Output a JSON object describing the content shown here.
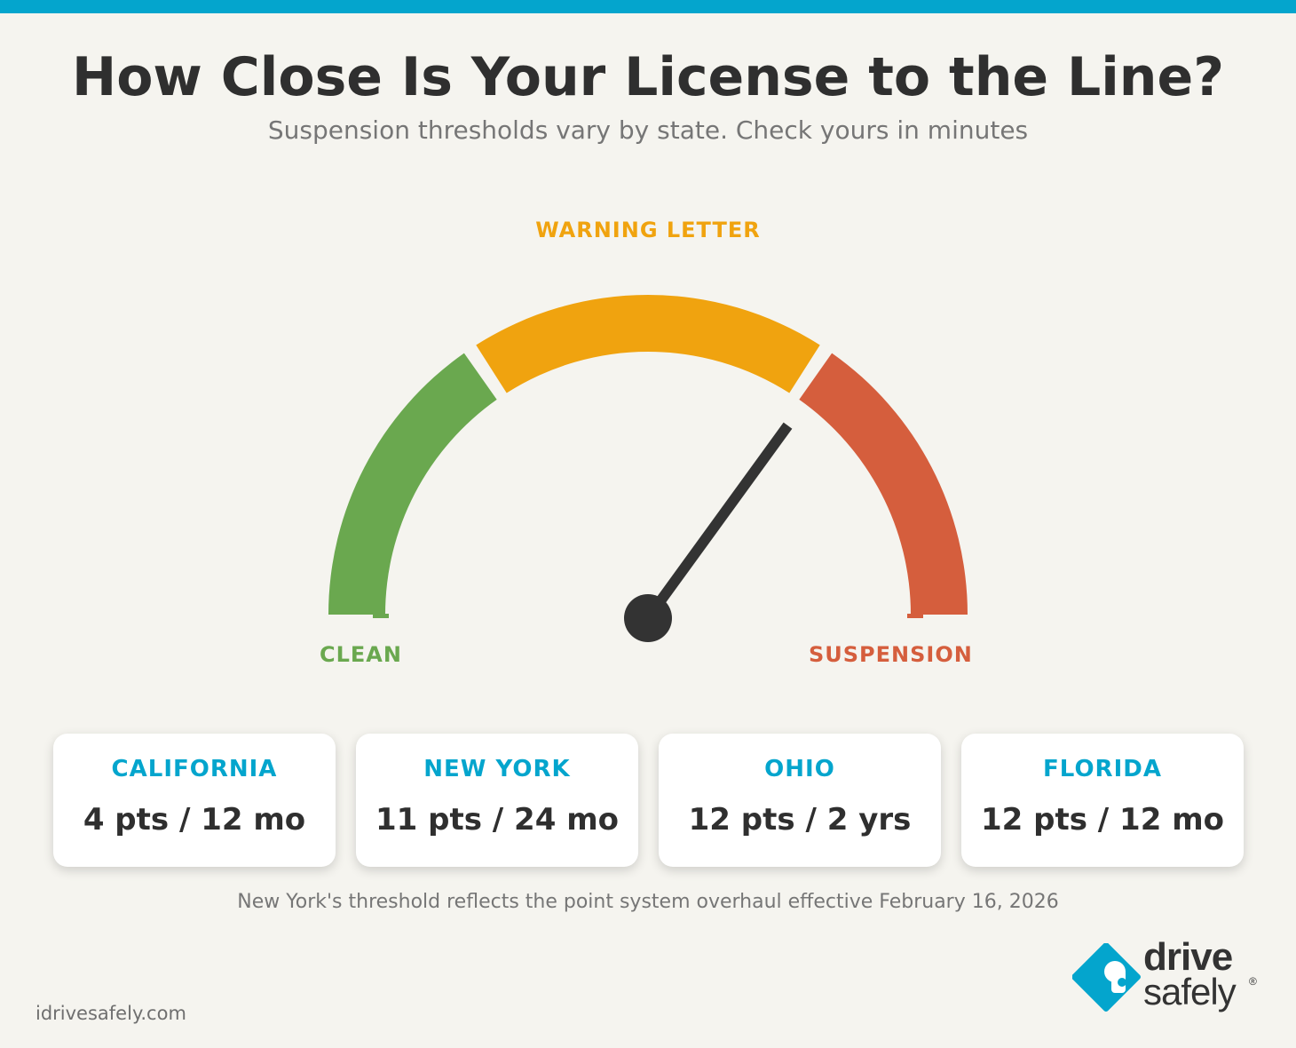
{
  "header": {
    "title": "How Close Is Your License to the Line?",
    "subtitle": "Suspension thresholds vary by state. Check yours in minutes"
  },
  "gauge": {
    "zones": [
      {
        "label": "CLEAN",
        "color": "#6aa84f"
      },
      {
        "label": "WARNING LETTER",
        "color": "#f0a30f"
      },
      {
        "label": "SUSPENSION",
        "color": "#d55e3d"
      }
    ],
    "needle_value": 0.7,
    "needle_color": "#333333"
  },
  "states": [
    {
      "name": "CALIFORNIA",
      "threshold": "4 pts / 12 mo"
    },
    {
      "name": "NEW YORK",
      "threshold": "11 pts / 24 mo"
    },
    {
      "name": "OHIO",
      "threshold": "12 pts / 2 yrs"
    },
    {
      "name": "FLORIDA",
      "threshold": "12 pts / 12 mo"
    }
  ],
  "footnote": "New York's threshold reflects the point system overhaul effective February 16, 2026",
  "footer": {
    "url": "idrivesafely.com",
    "logo_line1": "drive",
    "logo_line2": "safely",
    "logo_mark": "®"
  },
  "colors": {
    "accent": "#04a5cd",
    "text_dark": "#2f2f2f",
    "text_muted": "#767676",
    "background": "#f5f4ef"
  }
}
